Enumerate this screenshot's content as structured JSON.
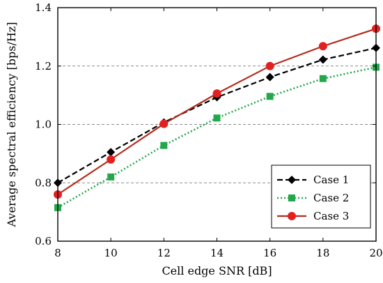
{
  "chart_data": {
    "type": "line",
    "x": [
      8,
      10,
      12,
      14,
      16,
      18,
      20
    ],
    "xlabel": "Cell edge SNR [dB]",
    "ylabel": "Average spectral efficiency [bps/Hz]",
    "xlim": [
      8,
      20
    ],
    "ylim": [
      0.6,
      1.4
    ],
    "xticks": [
      "8",
      "10",
      "12",
      "14",
      "16",
      "18",
      "20"
    ],
    "yticks": [
      "0.6",
      "0.8",
      "1.0",
      "1.2",
      "1.4"
    ],
    "grid": "horizontal dashed",
    "legend_position": "bottom-right",
    "series": [
      {
        "name": "Case 1",
        "values": [
          0.8,
          0.905,
          1.007,
          1.093,
          1.162,
          1.222,
          1.262
        ],
        "color": "#000000",
        "marker": "diamond",
        "line": "dashed"
      },
      {
        "name": "Case 2",
        "values": [
          0.715,
          0.82,
          0.928,
          1.022,
          1.096,
          1.157,
          1.196
        ],
        "color": "#22a84b",
        "marker": "square",
        "line": "dotted"
      },
      {
        "name": "Case 3",
        "values": [
          0.76,
          0.88,
          1.002,
          1.106,
          1.2,
          1.268,
          1.328
        ],
        "color": "#e32020",
        "line_color": "#b22c1c",
        "marker": "circle",
        "line": "solid"
      }
    ]
  }
}
